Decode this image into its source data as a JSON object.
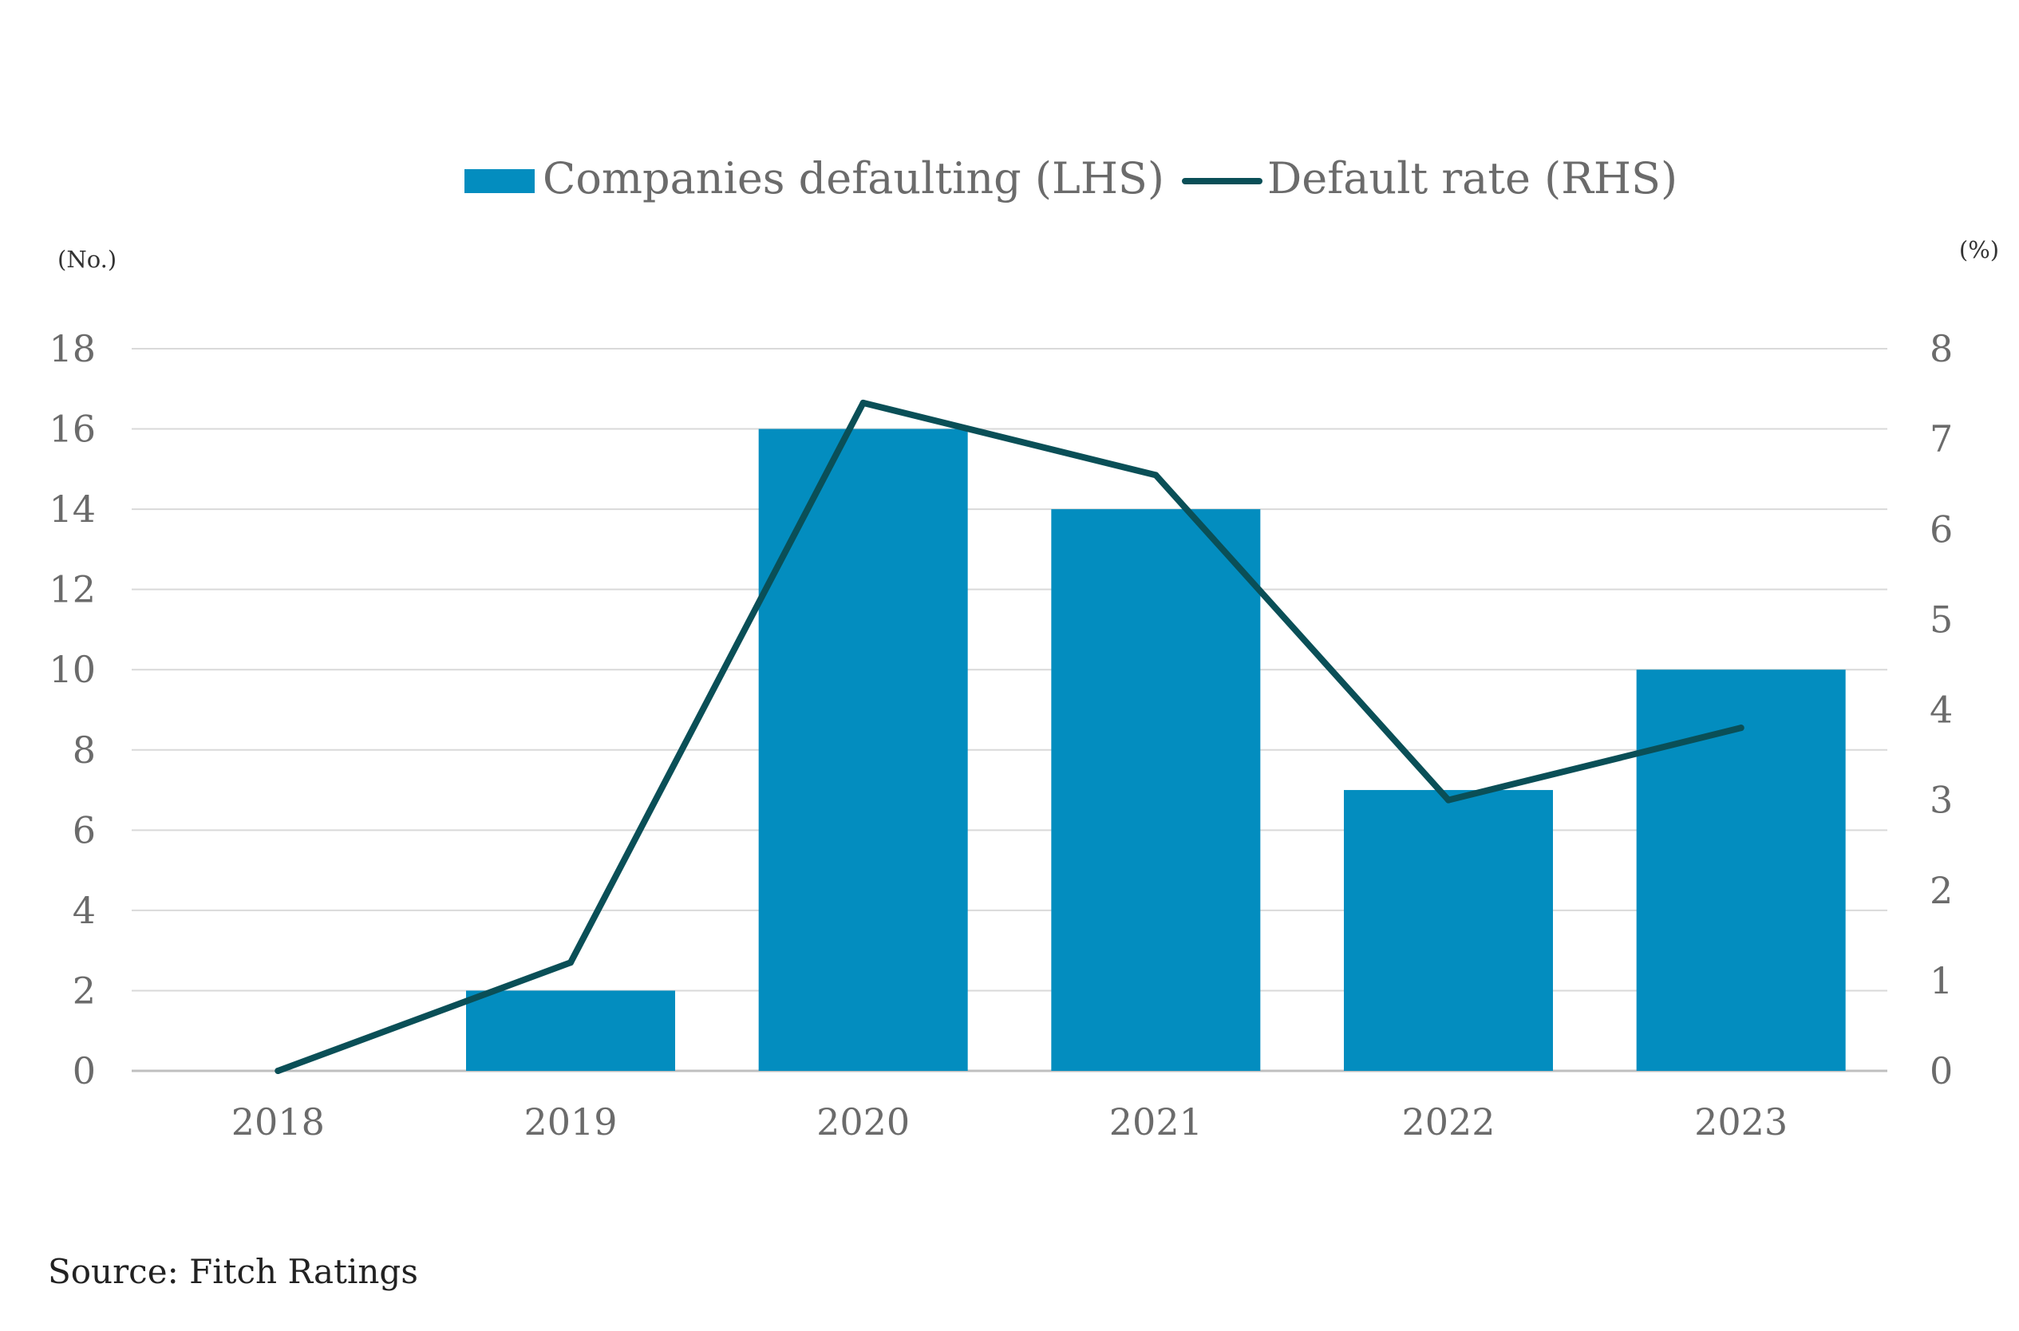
{
  "chart_data": {
    "type": "bar",
    "categories": [
      "2018",
      "2019",
      "2020",
      "2021",
      "2022",
      "2023"
    ],
    "series": [
      {
        "name": "Companies defaulting (LHS)",
        "type": "bar",
        "axis": "left",
        "color": "#038dbf",
        "values": [
          0,
          2,
          16,
          14,
          7,
          10
        ]
      },
      {
        "name": "Default rate (RHS)",
        "type": "line",
        "axis": "right",
        "color": "#0a4f57",
        "values": [
          0,
          1.2,
          7.4,
          6.6,
          3.0,
          3.8
        ]
      }
    ],
    "left_axis": {
      "unit_label": "(No.)",
      "ylim": [
        0,
        18
      ],
      "ticks": [
        0,
        2,
        4,
        6,
        8,
        10,
        12,
        14,
        16,
        18
      ]
    },
    "right_axis": {
      "unit_label": "(%)",
      "ylim": [
        0,
        8
      ],
      "ticks": [
        0,
        1,
        2,
        3,
        4,
        5,
        6,
        7,
        8
      ]
    },
    "grid": true,
    "legend_position": "top-center",
    "source": "Source: Fitch Ratings"
  },
  "colors": {
    "bar": "#038dbf",
    "line": "#0a4f57",
    "grid": "#d9d9d9",
    "tick_text": "#6b6b6b"
  }
}
